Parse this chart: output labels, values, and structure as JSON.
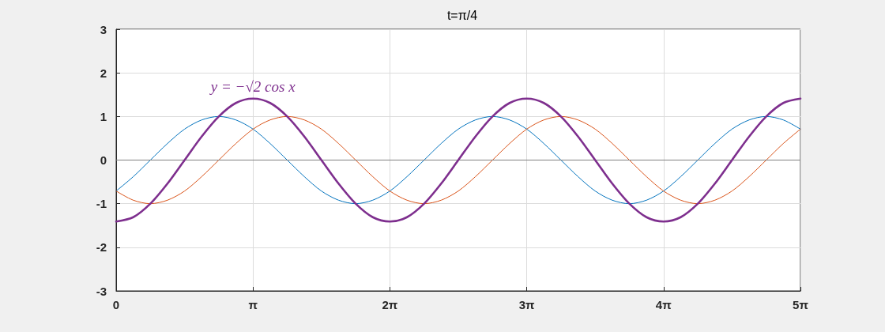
{
  "chart_data": {
    "type": "line",
    "title": "t=π/4",
    "x": [
      0,
      0.393,
      0.785,
      1.178,
      1.571,
      1.963,
      2.356,
      2.749,
      3.142,
      3.534,
      3.927,
      4.32,
      4.712,
      5.105,
      5.498,
      5.89,
      6.283,
      6.676,
      7.069,
      7.461,
      7.854,
      8.247,
      8.639,
      9.032,
      9.425,
      9.817,
      10.21,
      10.603,
      10.996,
      11.388,
      11.781,
      12.174,
      12.566,
      12.959,
      13.352,
      13.744,
      14.137,
      14.53,
      14.923,
      15.315,
      15.708
    ],
    "series": [
      {
        "color": "#0072bd",
        "values": [
          -0.71,
          -0.38,
          0,
          0.38,
          0.71,
          0.92,
          1,
          0.92,
          0.71,
          0.38,
          0,
          -0.38,
          -0.71,
          -0.92,
          -1,
          -0.92,
          -0.71,
          -0.38,
          0,
          0.38,
          0.71,
          0.92,
          1,
          0.92,
          0.71,
          0.38,
          0,
          -0.38,
          -0.71,
          -0.92,
          -1,
          -0.92,
          -0.71,
          -0.38,
          0,
          0.38,
          0.71,
          0.92,
          1,
          0.92,
          0.71
        ]
      },
      {
        "color": "#d95319",
        "values": [
          -0.71,
          -0.92,
          -1,
          -0.92,
          -0.71,
          -0.38,
          0,
          0.38,
          0.71,
          0.92,
          1,
          0.92,
          0.71,
          0.38,
          0,
          -0.38,
          -0.71,
          -0.92,
          -1,
          -0.92,
          -0.71,
          -0.38,
          0,
          0.38,
          0.71,
          0.92,
          1,
          0.92,
          0.71,
          0.38,
          0,
          -0.38,
          -0.71,
          -0.92,
          -1,
          -0.92,
          -0.71,
          -0.38,
          0,
          0.38,
          0.71
        ]
      },
      {
        "name": "y = −√2 cos x",
        "color": "#7e2f8e",
        "values": [
          -1.41,
          -1.31,
          -1,
          -0.54,
          0,
          0.54,
          1,
          1.31,
          1.41,
          1.31,
          1,
          0.54,
          0,
          -0.54,
          -1,
          -1.31,
          -1.41,
          -1.31,
          -1,
          -0.54,
          0,
          0.54,
          1,
          1.31,
          1.41,
          1.31,
          1,
          0.54,
          0,
          -0.54,
          -1,
          -1.31,
          -1.41,
          -1.31,
          -1,
          -0.54,
          0,
          0.54,
          1,
          1.31,
          1.41
        ]
      }
    ],
    "xlim": [
      0,
      15.708
    ],
    "xticks": [
      0,
      {
        "value": 3.142,
        "label": "π"
      },
      {
        "value": 6.283,
        "label": "2π"
      },
      {
        "value": 9.425,
        "label": "3π"
      },
      {
        "value": 12.566,
        "label": "4π"
      },
      {
        "value": 15.708,
        "label": "5π"
      }
    ],
    "ylim": [
      -3,
      3
    ],
    "yticks": [
      -3,
      -2,
      -1,
      0,
      1,
      2,
      3
    ],
    "ref_lines": [
      {
        "axis": "y",
        "value": 0,
        "color": "#808080"
      }
    ],
    "grid": true,
    "legend": false,
    "marker": "none",
    "line_style": "solid"
  }
}
